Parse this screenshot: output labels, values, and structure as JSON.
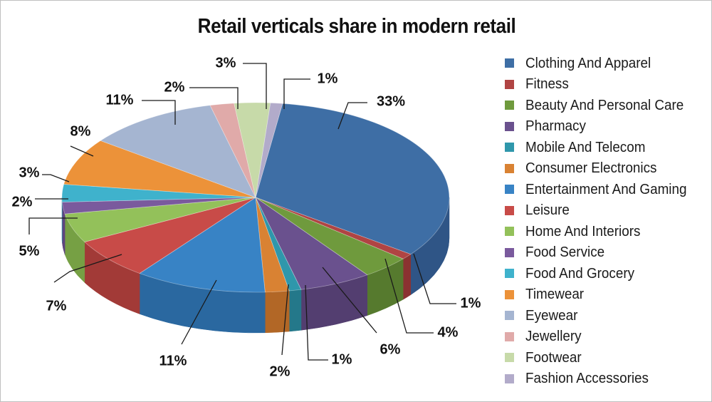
{
  "chart_data": {
    "type": "pie",
    "title": "Retail verticals share in modern retail",
    "legend_position": "right",
    "slices": [
      {
        "name": "Clothing And Apparel",
        "value": 33,
        "label": "33%",
        "color": "#3e6ea5",
        "side": "#2f5586"
      },
      {
        "name": "Fitness",
        "value": 1,
        "label": "1%",
        "color": "#b04443",
        "side": "#8b3231"
      },
      {
        "name": "Beauty And Personal Care",
        "value": 4,
        "label": "4%",
        "color": "#6f9a3d",
        "side": "#567a2e"
      },
      {
        "name": "Pharmacy",
        "value": 6,
        "label": "6%",
        "color": "#6a518e",
        "side": "#533e70"
      },
      {
        "name": "Mobile And Telecom",
        "value": 1,
        "label": "1%",
        "color": "#2f97ab",
        "side": "#24788a"
      },
      {
        "name": "Consumer Electronics",
        "value": 2,
        "label": "2%",
        "color": "#d98233",
        "side": "#b26726"
      },
      {
        "name": "Entertainment And Gaming",
        "value": 11,
        "label": "11%",
        "color": "#3883c5",
        "side": "#2a68a0"
      },
      {
        "name": "Leisure",
        "value": 7,
        "label": "7%",
        "color": "#c84b48",
        "side": "#a23a37"
      },
      {
        "name": "Home And Interiors",
        "value": 5,
        "label": "5%",
        "color": "#93c15a",
        "side": "#76a044"
      },
      {
        "name": "Food Service",
        "value": 2,
        "label": "2%",
        "color": "#7a5a9d",
        "side": "#5f457e"
      },
      {
        "name": "Food And Grocery",
        "value": 3,
        "label": "3%",
        "color": "#3fb2cc",
        "side": "#2f91a8"
      },
      {
        "name": "Timewear",
        "value": 8,
        "label": "8%",
        "color": "#ec9239",
        "side": "#c7752a"
      },
      {
        "name": "Eyewear",
        "value": 11,
        "label": "11%",
        "color": "#a5b5d1",
        "side": "#8494b0"
      },
      {
        "name": "Jewellery",
        "value": 2,
        "label": "2%",
        "color": "#e0aaa9",
        "side": "#bf8a89"
      },
      {
        "name": "Footwear",
        "value": 3,
        "label": "3%",
        "color": "#c7daa9",
        "side": "#a6ba88"
      },
      {
        "name": "Fashion Accessories",
        "value": 1,
        "label": "1%",
        "color": "#b2abca",
        "side": "#918aa9"
      }
    ]
  }
}
